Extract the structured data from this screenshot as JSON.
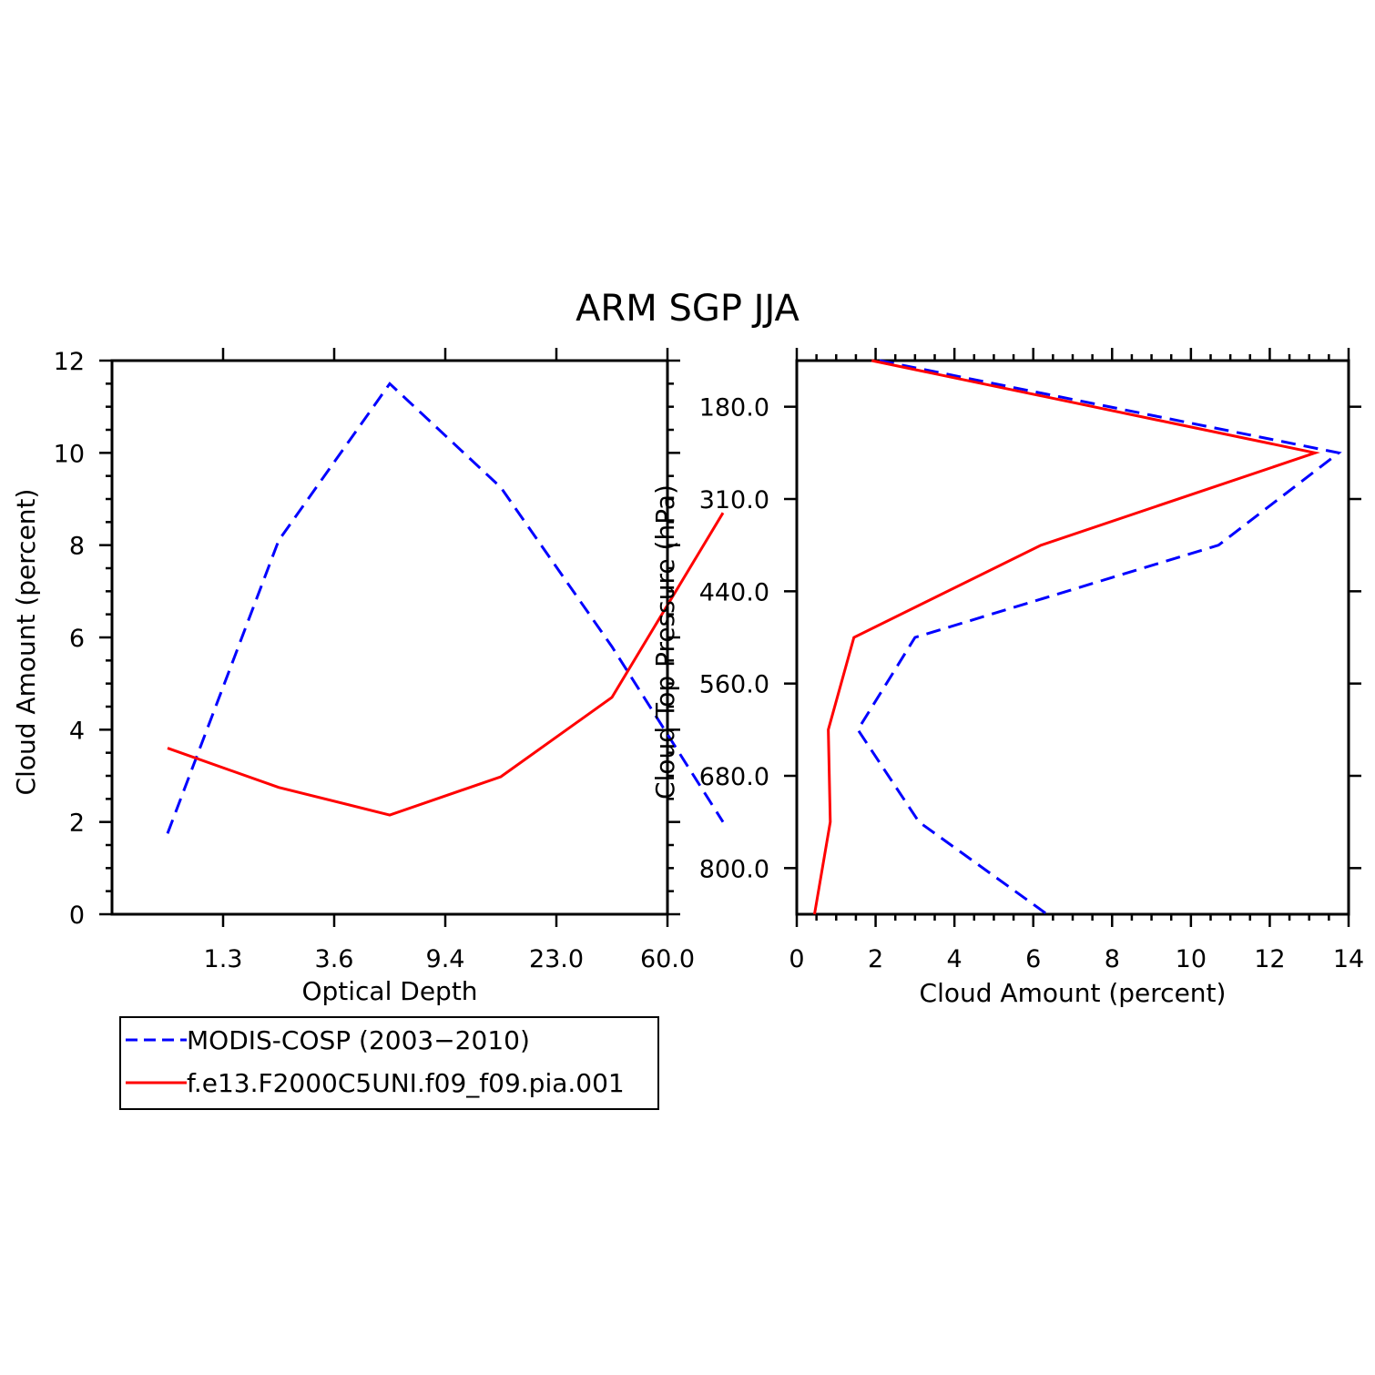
{
  "title": "ARM SGP JJA",
  "colors": {
    "modis": "#0000ff",
    "model": "#ff0000"
  },
  "chart_data": [
    {
      "type": "line",
      "xlabel": "Optical Depth",
      "ylabel": "Cloud Amount (percent)",
      "x_tick_labels": [
        "1.3",
        "3.6",
        "9.4",
        "23.0",
        "60.0"
      ],
      "y_ticks": [
        0,
        2,
        4,
        6,
        8,
        10,
        12
      ],
      "ylim": [
        0,
        12
      ],
      "x": [
        1,
        2,
        3,
        4,
        5,
        6
      ],
      "xlim": [
        0.5,
        5.5
      ],
      "series": [
        {
          "name": "MODIS-COSP (2003-2010)",
          "color_key": "modis",
          "dashed": true,
          "values": [
            1.75,
            8.1,
            11.5,
            9.25,
            5.8,
            2.0
          ]
        },
        {
          "name": "f.e13.F2000C5UNI.f09_f09.pia.001",
          "color_key": "model",
          "dashed": false,
          "values": [
            3.6,
            2.75,
            2.15,
            2.98,
            4.7,
            8.7
          ]
        }
      ]
    },
    {
      "type": "line",
      "xlabel": "Cloud Amount (percent)",
      "ylabel": "Cloud Top Pressure (hPa)",
      "x_ticks": [
        0,
        2,
        4,
        6,
        8,
        10,
        12,
        14
      ],
      "xlim": [
        0,
        14
      ],
      "y_tick_labels": [
        "180.0",
        "310.0",
        "440.0",
        "560.0",
        "680.0",
        "800.0"
      ],
      "ylim": [
        0,
        12
      ],
      "y_levels": [
        0,
        2,
        4,
        6,
        8,
        10,
        12
      ],
      "series": [
        {
          "name": "MODIS-COSP (2003-2010)",
          "color_key": "modis",
          "dashed": true,
          "values": [
            2.1,
            13.75,
            10.7,
            3.0,
            1.55,
            3.1,
            6.35
          ]
        },
        {
          "name": "f.e13.F2000C5UNI.f09_f09.pia.001",
          "color_key": "model",
          "dashed": false,
          "values": [
            1.9,
            13.15,
            6.2,
            1.45,
            0.8,
            0.85,
            0.45
          ]
        }
      ]
    }
  ],
  "legend": {
    "items": [
      {
        "label": "MODIS-COSP (2003−2010)",
        "color_key": "modis",
        "dashed": true
      },
      {
        "label": "f.e13.F2000C5UNI.f09_f09.pia.001",
        "color_key": "model",
        "dashed": false
      }
    ]
  }
}
